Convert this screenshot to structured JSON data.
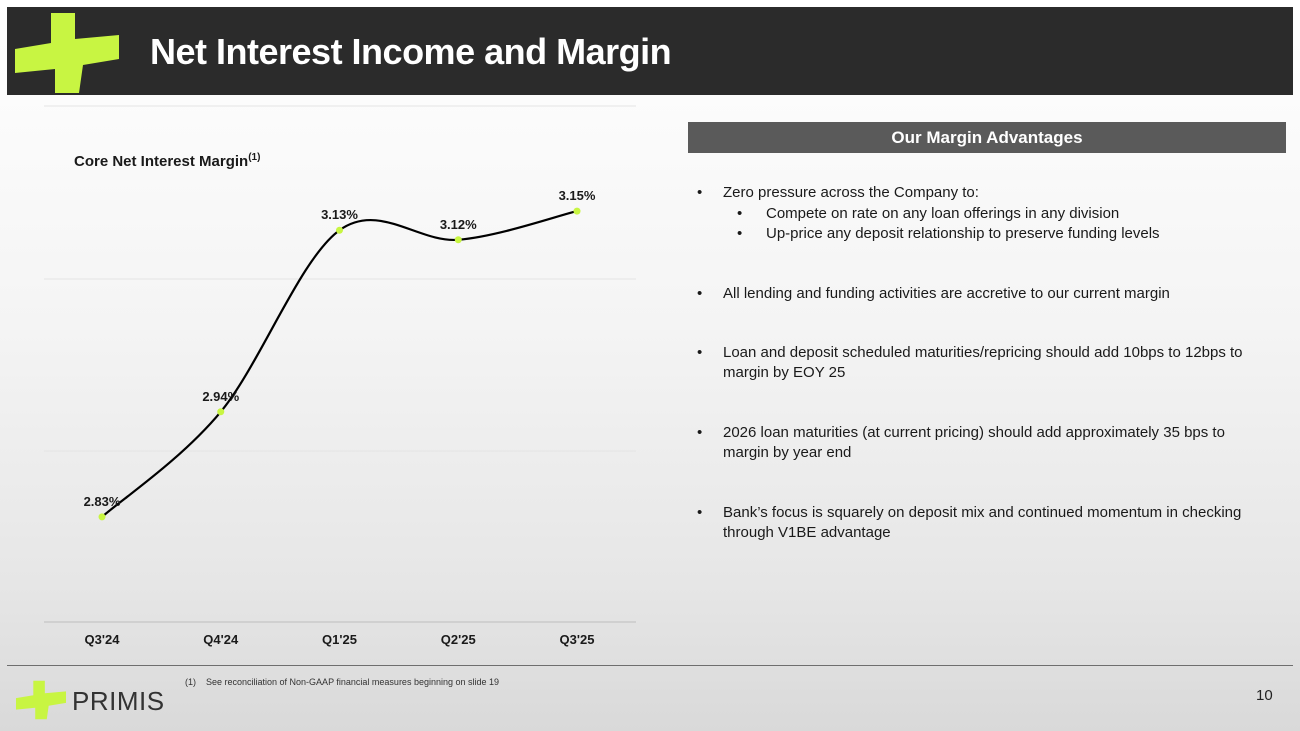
{
  "header": {
    "title": "Net Interest Income and Margin"
  },
  "chart_data": {
    "type": "line",
    "title": "Core Net Interest Margin",
    "title_superscript": "(1)",
    "categories": [
      "Q3'24",
      "Q4'24",
      "Q1'25",
      "Q2'25",
      "Q3'25"
    ],
    "values": [
      2.83,
      2.94,
      3.13,
      3.12,
      3.15
    ],
    "data_labels": [
      "2.83%",
      "2.94%",
      "3.13%",
      "3.12%",
      "3.15%"
    ],
    "ylim": [
      2.72,
      3.26
    ],
    "xlabel": "",
    "ylabel": "",
    "grid": true,
    "line_color": "#000000",
    "marker_color": "#c8f542"
  },
  "panel": {
    "title": "Our Margin Advantages",
    "bullet_glyph": "•",
    "bullets": [
      "Zero pressure across the Company to:",
      "All lending and funding activities are accretive to our current margin",
      "Loan and deposit scheduled maturities/repricing should add 10bps to 12bps to margin by EOY 25",
      "2026 loan maturities (at current pricing) should add approximately 35 bps to margin by year end",
      "Bank’s focus is squarely on deposit mix and continued momentum in checking through V1BE advantage"
    ],
    "sub_bullets": [
      "Compete on rate on any loan offerings in any division",
      "Up-price any deposit relationship to preserve funding levels"
    ]
  },
  "footer": {
    "brand": "PRIMIS",
    "footnote_num": "(1)",
    "footnote_text": "See reconciliation of Non-GAAP financial measures beginning on slide 19",
    "page_number": "10"
  },
  "colors": {
    "accent": "#c8f542",
    "header_bg": "#2b2b2b",
    "panel_header_bg": "#5a5a5a"
  }
}
